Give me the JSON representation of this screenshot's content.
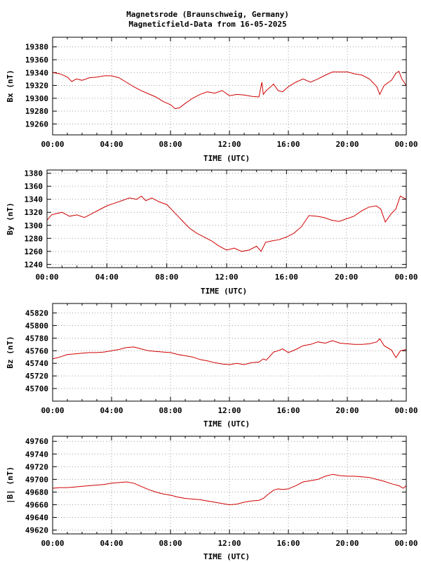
{
  "title_line1": "Magnetsrode (Braunschweig, Germany)",
  "title_line2": "Magneticfield-Data from 16-05-2025",
  "colors": {
    "series": "#d00000",
    "grid": "#a0a0a0",
    "frame": "#000000"
  },
  "chart_data": [
    {
      "type": "line",
      "xlabel": "TIME (UTC)",
      "ylabel": "Bx (nT)",
      "x_ticks": [
        "00:00",
        "04:00",
        "08:00",
        "12:00",
        "16:00",
        "20:00",
        "00:00"
      ],
      "xlim": [
        0,
        24
      ],
      "ylim": [
        19243,
        19395
      ],
      "y_ticks": [
        19260,
        19280,
        19300,
        19320,
        19340,
        19360,
        19380
      ],
      "grid": true,
      "series": [
        {
          "x": [
            0,
            0.5,
            1,
            1.3,
            1.6,
            2,
            2.5,
            3,
            3.5,
            4,
            4.5,
            5,
            5.5,
            6,
            6.5,
            7,
            7.5,
            8,
            8.3,
            8.6,
            9,
            9.5,
            10,
            10.5,
            11,
            11.5,
            12,
            12.5,
            13,
            13.5,
            14,
            14.2,
            14.3,
            14.5,
            15,
            15.3,
            15.6,
            16,
            16.5,
            17,
            17.5,
            18,
            18.5,
            19,
            19.5,
            20,
            20.5,
            21,
            21.5,
            22,
            22.2,
            22.5,
            23,
            23.3,
            23.5,
            23.7,
            24
          ],
          "y": [
            19340,
            19338,
            19333,
            19326,
            19330,
            19328,
            19332,
            19333,
            19335,
            19335,
            19332,
            19325,
            19318,
            19312,
            19307,
            19302,
            19295,
            19290,
            19284,
            19285,
            19292,
            19300,
            19306,
            19310,
            19308,
            19312,
            19304,
            19306,
            19305,
            19303,
            19302,
            19325,
            19306,
            19312,
            19322,
            19312,
            19310,
            19318,
            19325,
            19330,
            19325,
            19330,
            19336,
            19341,
            19341,
            19341,
            19338,
            19336,
            19330,
            19318,
            19306,
            19320,
            19328,
            19339,
            19342,
            19330,
            19320
          ]
        }
      ]
    },
    {
      "type": "line",
      "xlabel": "TIME (UTC)",
      "ylabel": "By (nT)",
      "x_ticks": [
        "00:00",
        "04:00",
        "08:00",
        "12:00",
        "16:00",
        "20:00",
        "00:00"
      ],
      "xlim": [
        0,
        24
      ],
      "ylim": [
        1235,
        1385
      ],
      "y_ticks": [
        1240,
        1260,
        1280,
        1300,
        1320,
        1340,
        1360,
        1380
      ],
      "grid": true,
      "series": [
        {
          "x": [
            0,
            0.3,
            0.6,
            1,
            1.5,
            2,
            2.5,
            3,
            3.5,
            4,
            4.5,
            5,
            5.5,
            6,
            6.3,
            6.6,
            7,
            7.5,
            8,
            8.5,
            9,
            9.5,
            10,
            10.5,
            11,
            11.5,
            12,
            12.5,
            13,
            13.5,
            14,
            14.3,
            14.6,
            15,
            15.5,
            16,
            16.5,
            17,
            17.5,
            18,
            18.5,
            19,
            19.5,
            20,
            20.5,
            21,
            21.5,
            22,
            22.3,
            22.6,
            23,
            23.3,
            23.6,
            24
          ],
          "y": [
            1308,
            1316,
            1318,
            1320,
            1314,
            1316,
            1312,
            1318,
            1324,
            1330,
            1334,
            1338,
            1342,
            1340,
            1345,
            1338,
            1342,
            1336,
            1332,
            1320,
            1308,
            1296,
            1288,
            1282,
            1276,
            1268,
            1262,
            1265,
            1260,
            1262,
            1268,
            1260,
            1274,
            1276,
            1278,
            1282,
            1288,
            1298,
            1315,
            1314,
            1312,
            1308,
            1306,
            1310,
            1314,
            1322,
            1328,
            1330,
            1325,
            1305,
            1318,
            1325,
            1345,
            1340
          ]
        }
      ]
    },
    {
      "type": "line",
      "xlabel": "TIME (UTC)",
      "ylabel": "Bz (nT)",
      "x_ticks": [
        "00:00",
        "04:00",
        "08:00",
        "12:00",
        "16:00",
        "20:00",
        "00:00"
      ],
      "xlim": [
        0,
        24
      ],
      "ylim": [
        45680,
        45835
      ],
      "y_ticks": [
        45700,
        45720,
        45740,
        45760,
        45780,
        45800,
        45820
      ],
      "grid": true,
      "series": [
        {
          "x": [
            0,
            0.5,
            1,
            1.5,
            2,
            2.5,
            3,
            3.5,
            4,
            4.5,
            5,
            5.5,
            6,
            6.5,
            7,
            7.5,
            8,
            8.5,
            9,
            9.5,
            10,
            10.5,
            11,
            11.5,
            12,
            12.5,
            13,
            13.5,
            14,
            14.3,
            14.5,
            15,
            15.3,
            15.6,
            16,
            16.5,
            17,
            17.5,
            18,
            18.5,
            19,
            19.5,
            20,
            20.5,
            21,
            21.5,
            22,
            22.2,
            22.5,
            23,
            23.3,
            23.6,
            24
          ],
          "y": [
            45747,
            45750,
            45754,
            45755,
            45756,
            45757,
            45757,
            45758,
            45760,
            45762,
            45765,
            45766,
            45763,
            45760,
            45759,
            45758,
            45757,
            45754,
            45752,
            45750,
            45746,
            45744,
            45741,
            45739,
            45738,
            45740,
            45738,
            45741,
            45742,
            45747,
            45745,
            45758,
            45760,
            45763,
            45757,
            45762,
            45768,
            45770,
            45774,
            45772,
            45776,
            45772,
            45771,
            45770,
            45770,
            45771,
            45774,
            45779,
            45768,
            45761,
            45749,
            45760,
            45762
          ]
        }
      ]
    },
    {
      "type": "line",
      "xlabel": "TIME (UTC)",
      "ylabel": "|B| (nT)",
      "x_ticks": [
        "00:00",
        "04:00",
        "08:00",
        "12:00",
        "16:00",
        "20:00",
        "00:00"
      ],
      "xlim": [
        0,
        24
      ],
      "ylim": [
        49614,
        49768
      ],
      "y_ticks": [
        49620,
        49640,
        49660,
        49680,
        49700,
        49720,
        49740,
        49760
      ],
      "grid": true,
      "series": [
        {
          "x": [
            0,
            0.5,
            1,
            1.5,
            2,
            2.5,
            3,
            3.5,
            4,
            4.5,
            5,
            5.5,
            6,
            6.5,
            7,
            7.5,
            8,
            8.5,
            9,
            9.5,
            10,
            10.5,
            11,
            11.5,
            12,
            12.5,
            13,
            13.5,
            14,
            14.3,
            14.6,
            15,
            15.3,
            15.6,
            16,
            16.5,
            17,
            17.5,
            18,
            18.5,
            19,
            19.5,
            20,
            20.5,
            21,
            21.5,
            22,
            22.5,
            23,
            23.5,
            23.8,
            24
          ],
          "y": [
            49686,
            49687,
            49687,
            49688,
            49689,
            49690,
            49691,
            49692,
            49694,
            49695,
            49696,
            49694,
            49689,
            49684,
            49680,
            49677,
            49675,
            49672,
            49670,
            49669,
            49668,
            49666,
            49664,
            49662,
            49660,
            49661,
            49664,
            49666,
            49667,
            49670,
            49676,
            49683,
            49685,
            49684,
            49685,
            49690,
            49696,
            49698,
            49700,
            49705,
            49708,
            49706,
            49705,
            49705,
            49704,
            49703,
            49700,
            49697,
            49693,
            49690,
            49686,
            49690
          ]
        }
      ]
    }
  ]
}
